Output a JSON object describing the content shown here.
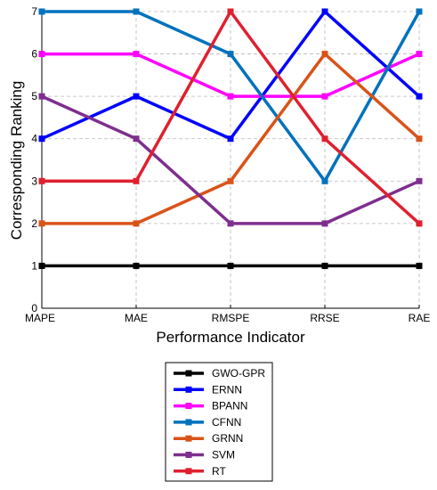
{
  "chart_data": {
    "type": "line",
    "title": "",
    "xlabel": "Performance Indicator",
    "ylabel": "Corresponding Ranking",
    "categories": [
      "MAPE",
      "MAE",
      "RMSPE",
      "RRSE",
      "RAE"
    ],
    "yticks": [
      "0",
      "1",
      "2",
      "3",
      "4",
      "5",
      "6",
      "7"
    ],
    "ylim": [
      0,
      7
    ],
    "grid": true,
    "legend_position": "bottom",
    "series": [
      {
        "name": "GWO-GPR",
        "color": "#000000",
        "values": [
          1,
          1,
          1,
          1,
          1
        ]
      },
      {
        "name": "ERNN",
        "color": "#0000ff",
        "values": [
          4,
          5,
          4,
          7,
          5
        ]
      },
      {
        "name": "BPANN",
        "color": "#ff00ff",
        "values": [
          6,
          6,
          5,
          5,
          6
        ]
      },
      {
        "name": "CFNN",
        "color": "#0072bd",
        "values": [
          7,
          7,
          6,
          3,
          7
        ]
      },
      {
        "name": "GRNN",
        "color": "#d95319",
        "values": [
          2,
          2,
          3,
          6,
          4
        ]
      },
      {
        "name": "SVM",
        "color": "#7e2f8e",
        "values": [
          5,
          4,
          2,
          2,
          3
        ]
      },
      {
        "name": "RT",
        "color": "#e0202e",
        "values": [
          3,
          3,
          7,
          4,
          2
        ]
      }
    ]
  }
}
